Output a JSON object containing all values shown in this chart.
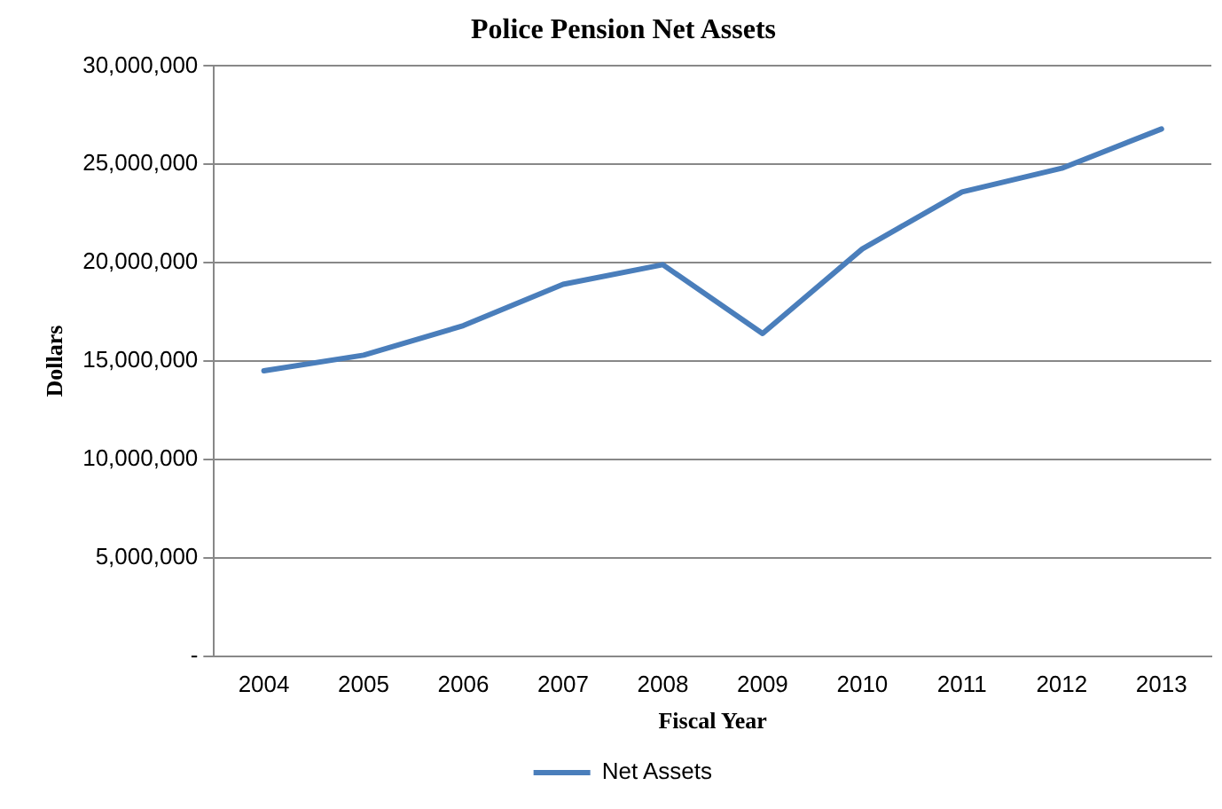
{
  "chart_data": {
    "type": "line",
    "title": "Police Pension Net Assets",
    "xlabel": "Fiscal Year",
    "ylabel": "Dollars",
    "categories": [
      "2004",
      "2005",
      "2006",
      "2007",
      "2008",
      "2009",
      "2010",
      "2011",
      "2012",
      "2013"
    ],
    "series": [
      {
        "name": "Net Assets",
        "color": "#4a7ebb",
        "values": [
          14500000,
          15300000,
          16800000,
          18900000,
          19900000,
          16400000,
          20700000,
          23600000,
          24800000,
          26800000
        ]
      }
    ],
    "ylim": [
      0,
      30000000
    ],
    "yticks": [
      {
        "value": 0,
        "label": "-"
      },
      {
        "value": 5000000,
        "label": "5,000,000"
      },
      {
        "value": 10000000,
        "label": "10,000,000"
      },
      {
        "value": 15000000,
        "label": "15,000,000"
      },
      {
        "value": 20000000,
        "label": "20,000,000"
      },
      {
        "value": 25000000,
        "label": "25,000,000"
      },
      {
        "value": 30000000,
        "label": "30,000,000"
      }
    ],
    "grid": "y",
    "legend": "bottom",
    "marker": "none",
    "line_style": "solid"
  }
}
